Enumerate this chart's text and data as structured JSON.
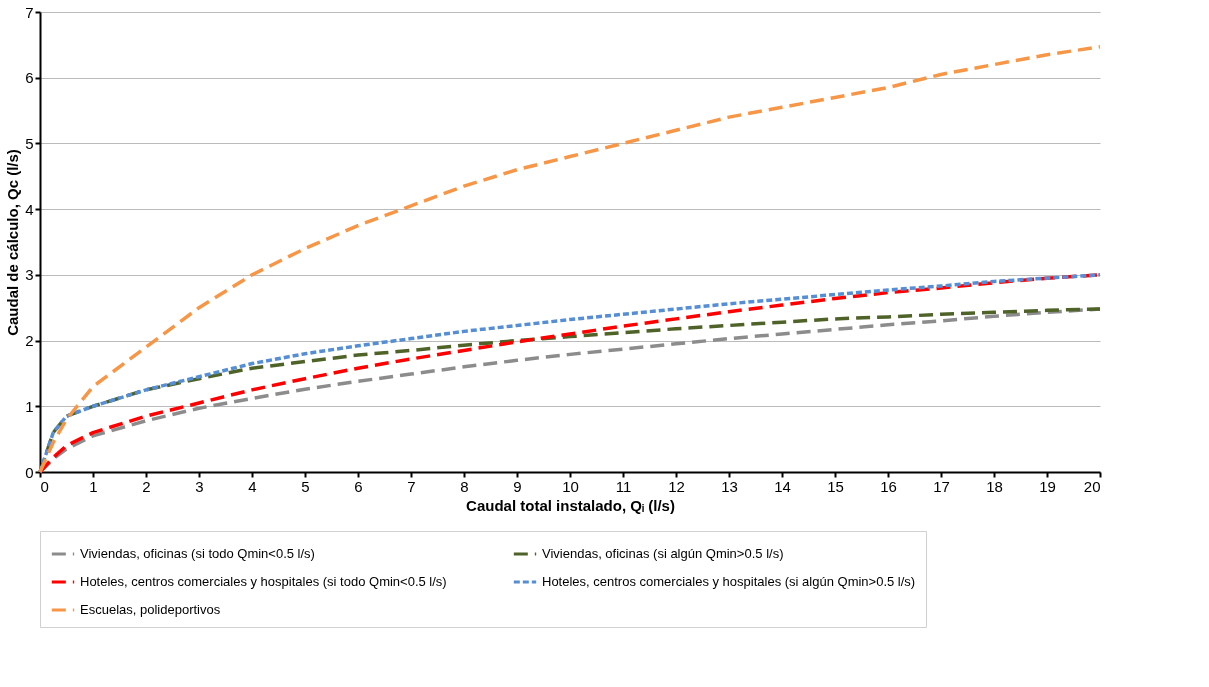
{
  "chart_data": {
    "type": "line",
    "xlabel": "Caudal total instalado, Qᵢ (l/s)",
    "ylabel": "Caudal de cálculo, Qc (l/s)",
    "x": [
      0,
      0.25,
      0.5,
      1,
      2,
      3,
      4,
      5,
      6,
      7,
      8,
      9,
      10,
      11,
      12,
      13,
      14,
      15,
      16,
      17,
      18,
      19,
      20
    ],
    "xlim": [
      0,
      20
    ],
    "xticks": [
      0,
      1,
      2,
      3,
      4,
      5,
      6,
      7,
      8,
      9,
      10,
      11,
      12,
      13,
      14,
      15,
      16,
      17,
      18,
      19,
      20
    ],
    "ylim": [
      0,
      7
    ],
    "yticks": [
      0,
      1,
      2,
      3,
      4,
      5,
      6,
      7
    ],
    "grid": "y",
    "legend": "bottom",
    "series": [
      {
        "name": "Viviendas, oficinas (si todo Qmin<0.5 l/s)",
        "color": "#8c8c8c",
        "line_style": "dashed",
        "values": [
          0,
          0.2,
          0.35,
          0.55,
          0.78,
          0.97,
          1.12,
          1.26,
          1.38,
          1.49,
          1.6,
          1.7,
          1.79,
          1.87,
          1.95,
          2.03,
          2.1,
          2.17,
          2.24,
          2.3,
          2.37,
          2.43,
          2.48
        ]
      },
      {
        "name": "Viviendas, oficinas (si algún Qmin>0.5 l/s)",
        "color": "#4f6228",
        "line_style": "dashed",
        "values": [
          0,
          0.6,
          0.85,
          1.0,
          1.25,
          1.42,
          1.58,
          1.68,
          1.78,
          1.85,
          1.93,
          2.0,
          2.06,
          2.12,
          2.18,
          2.23,
          2.28,
          2.33,
          2.36,
          2.4,
          2.43,
          2.46,
          2.48
        ]
      },
      {
        "name": "Hoteles, centros comerciales y hospitales (si todo Qmin<0.5 l/s)",
        "color": "#ff0000",
        "line_style": "dashed",
        "values": [
          0,
          0.22,
          0.4,
          0.6,
          0.85,
          1.05,
          1.25,
          1.42,
          1.58,
          1.72,
          1.85,
          1.98,
          2.1,
          2.22,
          2.33,
          2.44,
          2.54,
          2.64,
          2.73,
          2.8,
          2.88,
          2.95,
          3.0
        ]
      },
      {
        "name": "Hoteles, centros comerciales y hospitales (si algún Qmin>0.5 l/s)",
        "color": "#558ed5",
        "line_style": "dotted",
        "values": [
          0,
          0.6,
          0.85,
          1.0,
          1.25,
          1.45,
          1.65,
          1.8,
          1.92,
          2.03,
          2.14,
          2.23,
          2.32,
          2.4,
          2.48,
          2.56,
          2.63,
          2.7,
          2.77,
          2.83,
          2.9,
          2.95,
          3.0
        ]
      },
      {
        "name": "Escuelas, polideportivos",
        "color": "#f79646",
        "line_style": "dashed",
        "values": [
          0,
          0.45,
          0.8,
          1.3,
          1.9,
          2.5,
          3.0,
          3.4,
          3.75,
          4.05,
          4.35,
          4.6,
          4.8,
          5.0,
          5.2,
          5.4,
          5.55,
          5.7,
          5.85,
          6.05,
          6.2,
          6.35,
          6.47
        ]
      }
    ]
  }
}
